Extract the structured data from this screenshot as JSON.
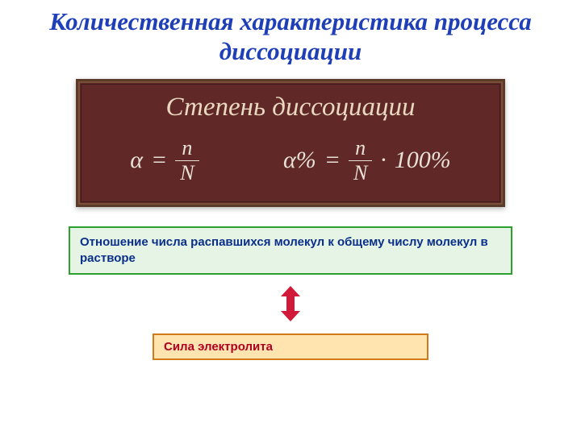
{
  "title": {
    "text": "Количественная характеристика процесса диссоциации",
    "color": "#1f3fb8",
    "fontsize": 31
  },
  "plaque": {
    "background": "#612828",
    "border_outer": "#5a3a28",
    "title": {
      "text": "Степень диссоциации",
      "color": "#e8d9c0",
      "fontsize": 33
    },
    "formula_color": "#e8e2d6",
    "formula1": {
      "lhs": "α",
      "eq": "=",
      "num": "n",
      "den": "N"
    },
    "formula2": {
      "lhs": "α%",
      "eq": "=",
      "num": "n",
      "den": "N",
      "dot": "·",
      "tail": "100%"
    }
  },
  "definition": {
    "text": "Отношение числа распавшихся молекул к общему числу молекул в растворе",
    "text_color": "#0a2f8a",
    "background": "#e6f4e6",
    "border_color": "#2da02d"
  },
  "arrow": {
    "fill": "#d11a3a",
    "width": 28,
    "height": 44
  },
  "strength": {
    "text": "Сила электролита",
    "text_color": "#b00020",
    "background": "#ffe4b0",
    "border_color": "#d07a1a"
  }
}
